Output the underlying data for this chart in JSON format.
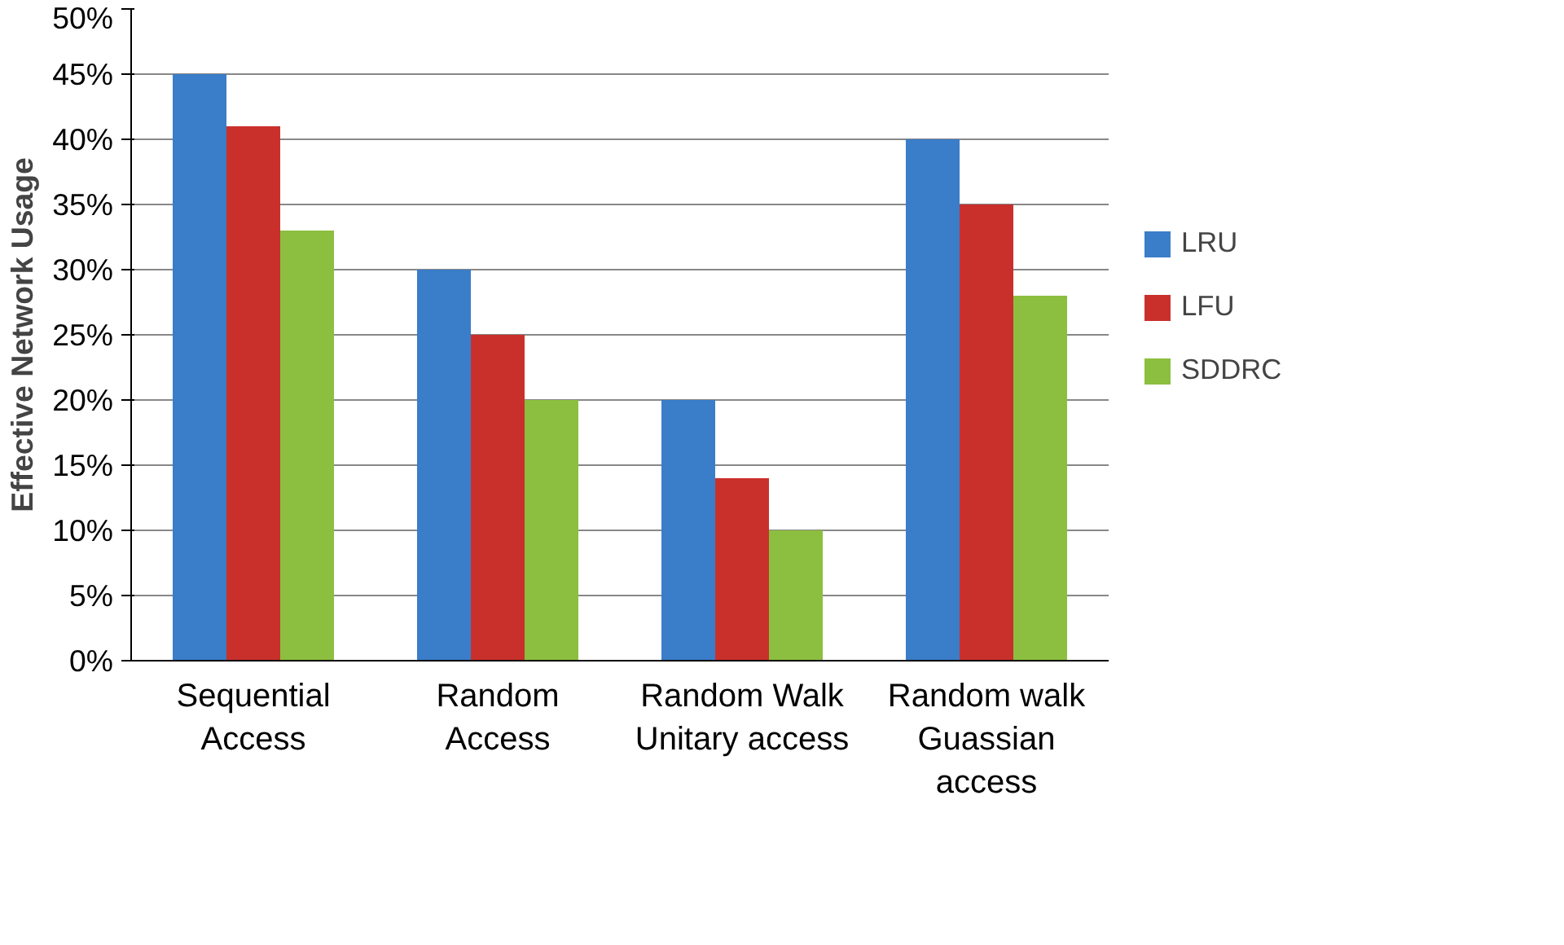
{
  "chart_data": {
    "type": "bar",
    "categories": [
      "Sequential\nAccess",
      "Random\nAccess",
      "Random Walk\nUnitary access",
      "Random walk\nGuassian\naccess"
    ],
    "ylabel": "Effective Network Usage",
    "series": [
      {
        "name": "LRU",
        "color": "#3a7dc9",
        "values": [
          45,
          30,
          20,
          40
        ]
      },
      {
        "name": "LFU",
        "color": "#c9302c",
        "values": [
          41,
          25,
          14,
          35
        ]
      },
      {
        "name": "SDDRC",
        "color": "#8cbf3f",
        "values": [
          33,
          20,
          10,
          28
        ]
      }
    ],
    "ylim": [
      0,
      50
    ],
    "yticks": [
      {
        "value": 0,
        "label": "0%"
      },
      {
        "value": 5,
        "label": "5%"
      },
      {
        "value": 10,
        "label": "10%"
      },
      {
        "value": 15,
        "label": "15%"
      },
      {
        "value": 20,
        "label": "20%"
      },
      {
        "value": 25,
        "label": "25%"
      },
      {
        "value": 30,
        "label": "30%"
      },
      {
        "value": 35,
        "label": "35%"
      },
      {
        "value": 40,
        "label": "40%"
      },
      {
        "value": 45,
        "label": "45%"
      },
      {
        "value": 50,
        "label": "50%"
      }
    ],
    "grid": "y",
    "legend": "right"
  }
}
